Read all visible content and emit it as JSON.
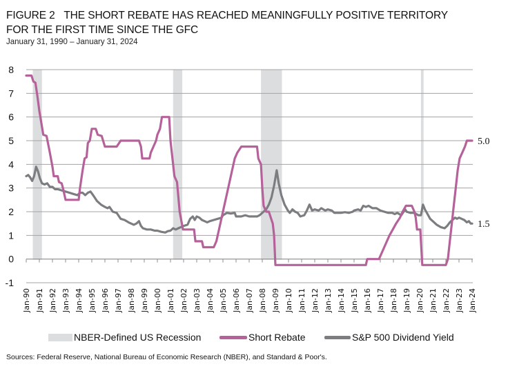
{
  "header": {
    "figure_label": "FIGURE 2",
    "title_line1": "THE SHORT REBATE HAS REACHED MEANINGFULLY POSITIVE TERRITORY",
    "title_line2": "FOR THE FIRST TIME SINCE THE GFC",
    "subtitle": "January 31, 1990 – January 31, 2024"
  },
  "colors": {
    "short_rebate": "#b5629b",
    "dividend_yield": "#7b7d80",
    "recession": "#dcdddf",
    "grid": "#a3a3a3"
  },
  "chart_data": {
    "type": "line",
    "title": "THE SHORT REBATE HAS REACHED MEANINGFULLY POSITIVE TERRITORY FOR THE FIRST TIME SINCE THE GFC",
    "subtitle": "January 31, 1990 – January 31, 2024",
    "xlabel": "",
    "ylabel": "",
    "xlim": [
      1990.0,
      2024.0
    ],
    "ylim": [
      -1,
      8
    ],
    "yticks": [
      -1,
      0,
      1,
      2,
      3,
      4,
      5,
      6,
      7,
      8
    ],
    "ytick_labels": [
      "-1",
      "0",
      "1",
      "2",
      "3",
      "4",
      "5",
      "6",
      "7",
      "8"
    ],
    "xtick_labels": [
      "Jan-90",
      "Jan-91",
      "Jan-92",
      "Jan-93",
      "Jan-94",
      "Jan-95",
      "Jan-96",
      "Jan-97",
      "Jan-98",
      "Jan-99",
      "Jan-00",
      "Jan-01",
      "Jan-02",
      "Jan-03",
      "Jan-04",
      "Jan-05",
      "Jan-06",
      "Jan-07",
      "Jan-08",
      "Jan-09",
      "Jan-10",
      "Jan-11",
      "Jan-12",
      "Jan-13",
      "Jan-14",
      "Jan-15",
      "Jan-16",
      "Jan-17",
      "Jan-18",
      "Jan-19",
      "Jan-20",
      "Jan-21",
      "Jan-22",
      "Jan-23",
      "Jan-24"
    ],
    "grid": true,
    "legend_position": "bottom",
    "legend": [
      "NBER-Defined US Recession",
      "Short Rebate",
      "S&P 500 Dividend Yield"
    ],
    "recessions": [
      {
        "start": 1990.5,
        "end": 1991.2
      },
      {
        "start": 2001.2,
        "end": 2001.9
      },
      {
        "start": 2007.9,
        "end": 2009.5
      },
      {
        "start": 2020.1,
        "end": 2020.3
      }
    ],
    "series": [
      {
        "name": "Short Rebate",
        "end_label": "5.0",
        "points": [
          [
            1990.0,
            7.75
          ],
          [
            1990.4,
            7.75
          ],
          [
            1990.55,
            7.5
          ],
          [
            1990.7,
            7.45
          ],
          [
            1990.85,
            6.9
          ],
          [
            1991.0,
            6.25
          ],
          [
            1991.15,
            5.75
          ],
          [
            1991.3,
            5.25
          ],
          [
            1991.55,
            5.2
          ],
          [
            1991.8,
            4.5
          ],
          [
            1992.0,
            3.9
          ],
          [
            1992.1,
            3.5
          ],
          [
            1992.4,
            3.5
          ],
          [
            1992.5,
            3.25
          ],
          [
            1992.7,
            3.2
          ],
          [
            1992.8,
            3.0
          ],
          [
            1993.0,
            2.5
          ],
          [
            1994.0,
            2.5
          ],
          [
            1994.1,
            3.0
          ],
          [
            1994.3,
            3.75
          ],
          [
            1994.45,
            4.25
          ],
          [
            1994.6,
            4.3
          ],
          [
            1994.7,
            4.9
          ],
          [
            1994.85,
            5.0
          ],
          [
            1995.0,
            5.5
          ],
          [
            1995.3,
            5.5
          ],
          [
            1995.45,
            5.25
          ],
          [
            1995.75,
            5.2
          ],
          [
            1996.0,
            4.75
          ],
          [
            1996.9,
            4.75
          ],
          [
            1997.2,
            5.0
          ],
          [
            1998.6,
            5.0
          ],
          [
            1998.75,
            4.75
          ],
          [
            1998.85,
            4.25
          ],
          [
            1999.4,
            4.25
          ],
          [
            1999.5,
            4.5
          ],
          [
            1999.7,
            4.75
          ],
          [
            1999.9,
            5.0
          ],
          [
            2000.0,
            5.25
          ],
          [
            2000.2,
            5.5
          ],
          [
            2000.35,
            6.0
          ],
          [
            2000.9,
            6.0
          ],
          [
            2001.0,
            5.0
          ],
          [
            2001.1,
            4.5
          ],
          [
            2001.3,
            3.5
          ],
          [
            2001.5,
            3.25
          ],
          [
            2001.7,
            2.0
          ],
          [
            2001.95,
            1.25
          ],
          [
            2002.8,
            1.25
          ],
          [
            2002.9,
            0.75
          ],
          [
            2003.4,
            0.75
          ],
          [
            2003.5,
            0.5
          ],
          [
            2004.3,
            0.5
          ],
          [
            2004.5,
            0.75
          ],
          [
            2004.7,
            1.25
          ],
          [
            2004.9,
            1.75
          ],
          [
            2005.1,
            2.25
          ],
          [
            2005.3,
            2.75
          ],
          [
            2005.5,
            3.25
          ],
          [
            2005.7,
            3.75
          ],
          [
            2005.9,
            4.25
          ],
          [
            2006.1,
            4.5
          ],
          [
            2006.4,
            4.75
          ],
          [
            2007.6,
            4.75
          ],
          [
            2007.7,
            4.25
          ],
          [
            2007.9,
            4.0
          ],
          [
            2008.0,
            3.0
          ],
          [
            2008.1,
            2.25
          ],
          [
            2008.3,
            2.0
          ],
          [
            2008.5,
            2.0
          ],
          [
            2008.8,
            1.5
          ],
          [
            2008.9,
            1.0
          ],
          [
            2009.0,
            -0.25
          ],
          [
            2015.9,
            -0.25
          ],
          [
            2016.0,
            0.0
          ],
          [
            2016.9,
            0.0
          ],
          [
            2017.1,
            0.25
          ],
          [
            2017.3,
            0.5
          ],
          [
            2017.5,
            0.75
          ],
          [
            2017.7,
            1.0
          ],
          [
            2017.95,
            1.25
          ],
          [
            2018.2,
            1.5
          ],
          [
            2018.5,
            1.75
          ],
          [
            2018.7,
            2.0
          ],
          [
            2018.95,
            2.25
          ],
          [
            2019.4,
            2.25
          ],
          [
            2019.6,
            2.0
          ],
          [
            2019.7,
            1.75
          ],
          [
            2019.8,
            1.25
          ],
          [
            2020.05,
            1.25
          ],
          [
            2020.2,
            -0.25
          ],
          [
            2022.0,
            -0.25
          ],
          [
            2022.15,
            0.0
          ],
          [
            2022.3,
            0.75
          ],
          [
            2022.45,
            1.5
          ],
          [
            2022.6,
            2.25
          ],
          [
            2022.75,
            3.0
          ],
          [
            2022.9,
            3.75
          ],
          [
            2023.05,
            4.25
          ],
          [
            2023.25,
            4.5
          ],
          [
            2023.45,
            4.75
          ],
          [
            2023.6,
            5.0
          ],
          [
            2024.0,
            5.0
          ]
        ]
      },
      {
        "name": "S&P 500 Dividend Yield",
        "end_label": "1.5",
        "points": [
          [
            1990.0,
            3.5
          ],
          [
            1990.15,
            3.55
          ],
          [
            1990.3,
            3.45
          ],
          [
            1990.45,
            3.3
          ],
          [
            1990.6,
            3.5
          ],
          [
            1990.75,
            3.9
          ],
          [
            1990.9,
            3.7
          ],
          [
            1991.05,
            3.4
          ],
          [
            1991.2,
            3.2
          ],
          [
            1991.4,
            3.15
          ],
          [
            1991.6,
            3.2
          ],
          [
            1991.8,
            3.05
          ],
          [
            1992.0,
            3.05
          ],
          [
            1992.2,
            2.95
          ],
          [
            1992.4,
            2.95
          ],
          [
            1992.7,
            2.9
          ],
          [
            1993.0,
            2.85
          ],
          [
            1993.3,
            2.8
          ],
          [
            1993.6,
            2.75
          ],
          [
            1993.9,
            2.7
          ],
          [
            1994.1,
            2.8
          ],
          [
            1994.3,
            2.8
          ],
          [
            1994.5,
            2.7
          ],
          [
            1994.7,
            2.8
          ],
          [
            1994.9,
            2.85
          ],
          [
            1995.1,
            2.7
          ],
          [
            1995.4,
            2.45
          ],
          [
            1995.7,
            2.3
          ],
          [
            1996.0,
            2.2
          ],
          [
            1996.2,
            2.15
          ],
          [
            1996.35,
            2.2
          ],
          [
            1996.6,
            2.0
          ],
          [
            1996.9,
            1.95
          ],
          [
            1997.2,
            1.7
          ],
          [
            1997.5,
            1.65
          ],
          [
            1997.8,
            1.55
          ],
          [
            1998.0,
            1.5
          ],
          [
            1998.2,
            1.45
          ],
          [
            1998.4,
            1.5
          ],
          [
            1998.6,
            1.6
          ],
          [
            1998.75,
            1.4
          ],
          [
            1998.9,
            1.3
          ],
          [
            1999.2,
            1.25
          ],
          [
            1999.5,
            1.25
          ],
          [
            1999.8,
            1.2
          ],
          [
            2000.0,
            1.2
          ],
          [
            2000.3,
            1.15
          ],
          [
            2000.6,
            1.12
          ],
          [
            2000.8,
            1.18
          ],
          [
            2001.0,
            1.2
          ],
          [
            2001.2,
            1.3
          ],
          [
            2001.4,
            1.25
          ],
          [
            2001.6,
            1.3
          ],
          [
            2001.8,
            1.35
          ],
          [
            2002.0,
            1.4
          ],
          [
            2002.3,
            1.45
          ],
          [
            2002.5,
            1.7
          ],
          [
            2002.7,
            1.8
          ],
          [
            2002.85,
            1.65
          ],
          [
            2003.0,
            1.8
          ],
          [
            2003.2,
            1.75
          ],
          [
            2003.4,
            1.65
          ],
          [
            2003.6,
            1.6
          ],
          [
            2003.8,
            1.55
          ],
          [
            2004.0,
            1.6
          ],
          [
            2004.3,
            1.65
          ],
          [
            2004.6,
            1.7
          ],
          [
            2004.9,
            1.75
          ],
          [
            2005.0,
            1.85
          ],
          [
            2005.3,
            1.95
          ],
          [
            2005.6,
            1.92
          ],
          [
            2005.9,
            1.95
          ],
          [
            2006.0,
            1.8
          ],
          [
            2006.4,
            1.8
          ],
          [
            2006.7,
            1.85
          ],
          [
            2007.0,
            1.8
          ],
          [
            2007.3,
            1.8
          ],
          [
            2007.6,
            1.8
          ],
          [
            2007.8,
            1.85
          ],
          [
            2008.0,
            1.95
          ],
          [
            2008.3,
            2.1
          ],
          [
            2008.5,
            2.3
          ],
          [
            2008.7,
            2.6
          ],
          [
            2008.9,
            3.1
          ],
          [
            2009.1,
            3.75
          ],
          [
            2009.25,
            3.2
          ],
          [
            2009.45,
            2.7
          ],
          [
            2009.7,
            2.3
          ],
          [
            2009.95,
            2.05
          ],
          [
            2010.1,
            1.95
          ],
          [
            2010.3,
            2.1
          ],
          [
            2010.5,
            2.0
          ],
          [
            2010.7,
            1.95
          ],
          [
            2010.9,
            1.8
          ],
          [
            2011.2,
            1.85
          ],
          [
            2011.4,
            2.05
          ],
          [
            2011.6,
            2.3
          ],
          [
            2011.8,
            2.05
          ],
          [
            2012.0,
            2.1
          ],
          [
            2012.3,
            2.05
          ],
          [
            2012.5,
            2.15
          ],
          [
            2012.8,
            2.05
          ],
          [
            2013.0,
            2.1
          ],
          [
            2013.3,
            2.05
          ],
          [
            2013.5,
            1.95
          ],
          [
            2013.8,
            1.95
          ],
          [
            2014.0,
            1.95
          ],
          [
            2014.3,
            1.98
          ],
          [
            2014.6,
            1.95
          ],
          [
            2014.9,
            2.0
          ],
          [
            2015.0,
            2.05
          ],
          [
            2015.3,
            2.1
          ],
          [
            2015.5,
            2.05
          ],
          [
            2015.7,
            2.25
          ],
          [
            2015.9,
            2.2
          ],
          [
            2016.1,
            2.25
          ],
          [
            2016.4,
            2.15
          ],
          [
            2016.7,
            2.15
          ],
          [
            2017.0,
            2.05
          ],
          [
            2017.3,
            2.0
          ],
          [
            2017.6,
            1.95
          ],
          [
            2017.9,
            1.95
          ],
          [
            2018.1,
            1.9
          ],
          [
            2018.3,
            1.95
          ],
          [
            2018.6,
            1.85
          ],
          [
            2018.9,
            2.1
          ],
          [
            2019.0,
            2.0
          ],
          [
            2019.3,
            1.95
          ],
          [
            2019.6,
            1.95
          ],
          [
            2019.9,
            1.85
          ],
          [
            2020.1,
            1.85
          ],
          [
            2020.25,
            2.3
          ],
          [
            2020.4,
            2.1
          ],
          [
            2020.6,
            1.9
          ],
          [
            2020.8,
            1.7
          ],
          [
            2021.0,
            1.6
          ],
          [
            2021.3,
            1.45
          ],
          [
            2021.6,
            1.35
          ],
          [
            2021.9,
            1.3
          ],
          [
            2022.1,
            1.4
          ],
          [
            2022.3,
            1.55
          ],
          [
            2022.5,
            1.65
          ],
          [
            2022.7,
            1.75
          ],
          [
            2022.85,
            1.7
          ],
          [
            2023.0,
            1.75
          ],
          [
            2023.2,
            1.7
          ],
          [
            2023.4,
            1.65
          ],
          [
            2023.6,
            1.55
          ],
          [
            2023.75,
            1.6
          ],
          [
            2023.9,
            1.5
          ],
          [
            2024.0,
            1.5
          ]
        ]
      }
    ]
  },
  "legend": {
    "recession_label": "NBER-Defined US Recession",
    "short_rebate_label": "Short Rebate",
    "dividend_yield_label": "S&P 500 Dividend Yield"
  },
  "footer": {
    "source": "Sources: Federal Reserve, National Bureau of Economic Research (NBER), and Standard & Poor's."
  }
}
